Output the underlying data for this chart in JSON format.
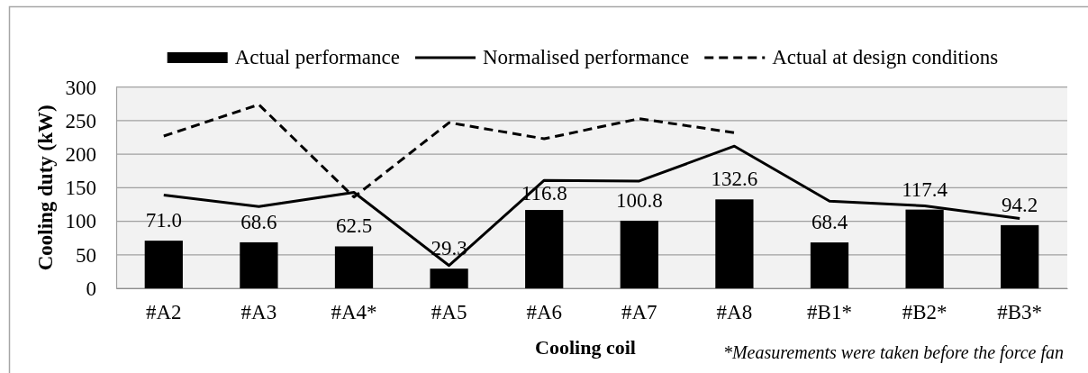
{
  "chart_data": {
    "type": "bar",
    "xlabel": "Cooling coil",
    "ylabel": "Cooling duty (kW)",
    "categories": [
      "#A2",
      "#A3",
      "#A4*",
      "#A5",
      "#A6",
      "#A7",
      "#A8",
      "#B1*",
      "#B2*",
      "#B3*"
    ],
    "ylim": [
      0,
      300
    ],
    "yticks": [
      0,
      50,
      100,
      150,
      200,
      250,
      300
    ],
    "grid": "y",
    "legend": "top",
    "marker": "none",
    "annotations": [
      "*Measurements were taken before the force fan"
    ],
    "series": [
      {
        "name": "Actual performance",
        "color": "#000000",
        "values": [
          71.0,
          68.6,
          62.5,
          29.3,
          116.8,
          100.8,
          132.6,
          68.4,
          117.4,
          94.2
        ],
        "value_labels": [
          "71.0",
          "68.6",
          "62.5",
          "29.3",
          "116.8",
          "100.8",
          "132.6",
          "68.4",
          "117.4",
          "94.2"
        ]
      },
      {
        "name": "Normalised performance",
        "type": "line",
        "color": "#000000",
        "line_style": "solid",
        "values": [
          139,
          122,
          143,
          34,
          161,
          160,
          212,
          130,
          123,
          104
        ]
      },
      {
        "name": "Actual at design conditions",
        "type": "line",
        "color": "#000000",
        "line_style": "dashed",
        "values": [
          227,
          274,
          136,
          247,
          223,
          253,
          232,
          null,
          null,
          null
        ]
      }
    ]
  }
}
